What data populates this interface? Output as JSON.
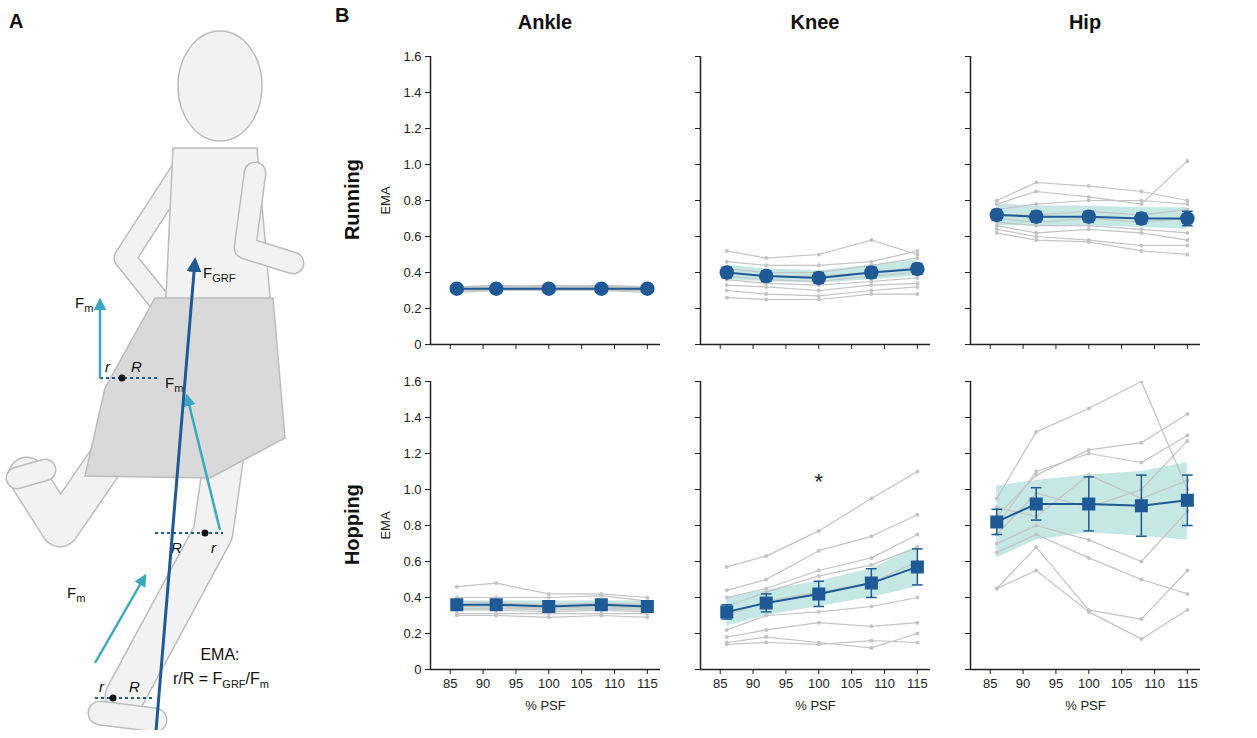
{
  "panel_labels": [
    "A",
    "B"
  ],
  "panel_a": {
    "force_grf": [
      "F",
      "GRF"
    ],
    "muscle_force": [
      "F",
      "m"
    ],
    "lever_short": "r",
    "lever_long": "R",
    "ema_title": "EMA:",
    "ema_formula": [
      {
        "text": "r/R = F"
      },
      {
        "text": "GRF",
        "sub": true
      },
      {
        "text": "/F"
      },
      {
        "text": "m",
        "sub": true
      }
    ]
  },
  "column_titles": [
    "Ankle",
    "Knee",
    "Hip"
  ],
  "row_titles": [
    "Running",
    "Hopping"
  ],
  "chart_data": [
    {
      "type": "line",
      "row": "Running",
      "column": "Ankle",
      "ylabel": "EMA",
      "tick_labels": "y",
      "x": [
        86,
        92,
        100,
        108,
        115
      ],
      "xlim": [
        82,
        117
      ],
      "xticks": [
        85,
        90,
        95,
        100,
        105,
        110,
        115
      ],
      "ylim": [
        0,
        1.6
      ],
      "yticks": [
        0,
        0.2,
        0.4,
        0.6,
        0.8,
        {
          "value": 1,
          "label": "1.0"
        },
        1.2,
        1.4,
        1.6
      ],
      "series": [
        {
          "values": [
            0.31,
            0.31,
            0.31,
            0.31,
            0.31
          ],
          "error": [
            0.01,
            0.01,
            0.01,
            0.01,
            0.01
          ],
          "color": "#1f5a96",
          "marker": "circle"
        }
      ],
      "band": {
        "low": [
          0.3,
          0.3,
          0.3,
          0.3,
          0.3
        ],
        "high": [
          0.32,
          0.32,
          0.32,
          0.32,
          0.32
        ],
        "color": "#9fd9d3"
      },
      "individual": {
        "color": "#c4c4c4",
        "values": [
          [
            0.3,
            0.31,
            0.31,
            0.31,
            0.3
          ],
          [
            0.31,
            0.32,
            0.32,
            0.32,
            0.31
          ],
          [
            0.29,
            0.3,
            0.3,
            0.3,
            0.29
          ],
          [
            0.32,
            0.32,
            0.33,
            0.32,
            0.32
          ],
          [
            0.3,
            0.31,
            0.3,
            0.31,
            0.31
          ],
          [
            0.31,
            0.31,
            0.31,
            0.32,
            0.31
          ],
          [
            0.3,
            0.3,
            0.31,
            0.3,
            0.3
          ],
          [
            0.32,
            0.33,
            0.32,
            0.33,
            0.32
          ],
          [
            0.31,
            0.31,
            0.32,
            0.31,
            0.31
          ]
        ]
      }
    },
    {
      "type": "line",
      "row": "Running",
      "column": "Knee",
      "tick_labels": false,
      "x": [
        86,
        92,
        100,
        108,
        115
      ],
      "xlim": [
        82,
        117
      ],
      "xticks": [
        85,
        90,
        95,
        100,
        105,
        110,
        115
      ],
      "ylim": [
        0,
        1.6
      ],
      "yticks": [
        0,
        0.2,
        0.4,
        0.6,
        0.8,
        {
          "value": 1,
          "label": "1.0"
        },
        1.2,
        1.4,
        1.6
      ],
      "series": [
        {
          "values": [
            0.4,
            0.38,
            0.37,
            0.4,
            0.42
          ],
          "error": [
            0.03,
            0.03,
            0.03,
            0.03,
            0.03
          ],
          "color": "#1f5a96",
          "marker": "circle"
        }
      ],
      "band": {
        "low": [
          0.36,
          0.35,
          0.34,
          0.36,
          0.38
        ],
        "high": [
          0.44,
          0.42,
          0.41,
          0.44,
          0.47
        ],
        "color": "#9fd9d3"
      },
      "individual": {
        "color": "#c4c4c4",
        "values": [
          [
            0.52,
            0.48,
            0.5,
            0.58,
            0.5
          ],
          [
            0.46,
            0.44,
            0.44,
            0.46,
            0.52
          ],
          [
            0.42,
            0.4,
            0.4,
            0.44,
            0.48
          ],
          [
            0.4,
            0.38,
            0.38,
            0.4,
            0.43
          ],
          [
            0.38,
            0.36,
            0.35,
            0.38,
            0.4
          ],
          [
            0.36,
            0.34,
            0.33,
            0.35,
            0.37
          ],
          [
            0.33,
            0.32,
            0.3,
            0.33,
            0.34
          ],
          [
            0.3,
            0.28,
            0.27,
            0.3,
            0.32
          ],
          [
            0.26,
            0.25,
            0.25,
            0.28,
            0.28
          ]
        ]
      }
    },
    {
      "type": "line",
      "row": "Running",
      "column": "Hip",
      "tick_labels": false,
      "x": [
        86,
        92,
        100,
        108,
        115
      ],
      "xlim": [
        82,
        117
      ],
      "xticks": [
        85,
        90,
        95,
        100,
        105,
        110,
        115
      ],
      "ylim": [
        0,
        1.6
      ],
      "yticks": [
        0,
        0.2,
        0.4,
        0.6,
        0.8,
        {
          "value": 1,
          "label": "1.0"
        },
        1.2,
        1.4,
        1.6
      ],
      "series": [
        {
          "values": [
            0.72,
            0.71,
            0.71,
            0.7,
            0.7
          ],
          "error": [
            0.03,
            0.03,
            0.03,
            0.03,
            0.04
          ],
          "color": "#1f5a96",
          "marker": "circle"
        }
      ],
      "band": {
        "low": [
          0.66,
          0.66,
          0.66,
          0.65,
          0.64
        ],
        "high": [
          0.78,
          0.77,
          0.77,
          0.76,
          0.76
        ],
        "color": "#9fd9d3"
      },
      "individual": {
        "color": "#c4c4c4",
        "values": [
          [
            0.8,
            0.9,
            0.88,
            0.85,
            0.8
          ],
          [
            0.78,
            0.85,
            0.82,
            0.78,
            1.02
          ],
          [
            0.75,
            0.78,
            0.8,
            0.8,
            0.78
          ],
          [
            0.72,
            0.72,
            0.74,
            0.72,
            0.75
          ],
          [
            0.7,
            0.68,
            0.7,
            0.68,
            0.7
          ],
          [
            0.68,
            0.66,
            0.66,
            0.64,
            0.62
          ],
          [
            0.66,
            0.62,
            0.64,
            0.62,
            0.58
          ],
          [
            0.64,
            0.6,
            0.58,
            0.55,
            0.55
          ],
          [
            0.62,
            0.58,
            0.57,
            0.52,
            0.5
          ]
        ]
      }
    },
    {
      "type": "line",
      "row": "Hopping",
      "column": "Ankle",
      "ylabel": "EMA",
      "xlabel": "% PSF",
      "tick_labels": true,
      "x": [
        86,
        92,
        100,
        108,
        115
      ],
      "xlim": [
        82,
        117
      ],
      "xticks": [
        85,
        90,
        95,
        100,
        105,
        110,
        115
      ],
      "ylim": [
        0,
        1.6
      ],
      "yticks": [
        0,
        0.2,
        0.4,
        0.6,
        0.8,
        {
          "value": 1,
          "label": "1.0"
        },
        1.2,
        1.4,
        1.6
      ],
      "series": [
        {
          "values": [
            0.36,
            0.36,
            0.35,
            0.36,
            0.35
          ],
          "error": [
            0.02,
            0.02,
            0.02,
            0.02,
            0.02
          ],
          "color": "#1f5a96",
          "marker": "square"
        }
      ],
      "band": {
        "low": [
          0.33,
          0.33,
          0.33,
          0.33,
          0.33
        ],
        "high": [
          0.38,
          0.38,
          0.38,
          0.38,
          0.38
        ],
        "color": "#9fd9d3"
      },
      "individual": {
        "color": "#c4c4c4",
        "values": [
          [
            0.46,
            0.48,
            0.42,
            0.42,
            0.4
          ],
          [
            0.4,
            0.4,
            0.4,
            0.41,
            0.38
          ],
          [
            0.38,
            0.37,
            0.36,
            0.37,
            0.36
          ],
          [
            0.36,
            0.36,
            0.35,
            0.36,
            0.35
          ],
          [
            0.35,
            0.35,
            0.34,
            0.35,
            0.34
          ],
          [
            0.34,
            0.34,
            0.33,
            0.34,
            0.33
          ],
          [
            0.33,
            0.33,
            0.32,
            0.33,
            0.32
          ],
          [
            0.31,
            0.31,
            0.31,
            0.31,
            0.31
          ],
          [
            0.3,
            0.3,
            0.29,
            0.3,
            0.29
          ]
        ]
      }
    },
    {
      "type": "line",
      "row": "Hopping",
      "column": "Knee",
      "xlabel": "% PSF",
      "tick_labels": "x",
      "x": [
        86,
        92,
        100,
        108,
        115
      ],
      "xlim": [
        82,
        117
      ],
      "xticks": [
        85,
        90,
        95,
        100,
        105,
        110,
        115
      ],
      "ylim": [
        0,
        1.6
      ],
      "yticks": [
        0,
        0.2,
        0.4,
        0.6,
        0.8,
        {
          "value": 1,
          "label": "1.0"
        },
        1.2,
        1.4,
        1.6
      ],
      "series": [
        {
          "values": [
            0.32,
            0.37,
            0.42,
            0.48,
            0.57
          ],
          "error": [
            0.04,
            0.05,
            0.07,
            0.08,
            0.1
          ],
          "color": "#1f5a96",
          "marker": "square"
        }
      ],
      "band": {
        "low": [
          0.24,
          0.3,
          0.35,
          0.4,
          0.46
        ],
        "high": [
          0.4,
          0.44,
          0.49,
          0.56,
          0.68
        ],
        "color": "#9fd9d3"
      },
      "individual": {
        "color": "#c4c4c4",
        "values": [
          [
            0.57,
            0.63,
            0.77,
            0.95,
            1.1
          ],
          [
            0.44,
            0.5,
            0.66,
            0.74,
            0.86
          ],
          [
            0.4,
            0.45,
            0.55,
            0.62,
            0.75
          ],
          [
            0.35,
            0.43,
            0.52,
            0.58,
            0.68
          ],
          [
            0.3,
            0.38,
            0.43,
            0.48,
            0.6
          ],
          [
            0.22,
            0.3,
            0.32,
            0.35,
            0.4
          ],
          [
            0.18,
            0.22,
            0.26,
            0.24,
            0.26
          ],
          [
            0.15,
            0.18,
            0.15,
            0.12,
            0.2
          ],
          [
            0.14,
            0.15,
            0.14,
            0.16,
            0.15
          ]
        ]
      },
      "annotations": [
        {
          "text": "*",
          "x": 100,
          "y": 1.04
        }
      ]
    },
    {
      "type": "line",
      "row": "Hopping",
      "column": "Hip",
      "xlabel": "% PSF",
      "tick_labels": "x",
      "x": [
        86,
        92,
        100,
        108,
        115
      ],
      "xlim": [
        82,
        117
      ],
      "xticks": [
        85,
        90,
        95,
        100,
        105,
        110,
        115
      ],
      "ylim": [
        0,
        1.6
      ],
      "yticks": [
        0,
        0.2,
        0.4,
        0.6,
        0.8,
        {
          "value": 1,
          "label": "1.0"
        },
        1.2,
        1.4,
        1.6
      ],
      "series": [
        {
          "values": [
            0.82,
            0.92,
            0.92,
            0.91,
            0.94
          ],
          "error": [
            0.07,
            0.09,
            0.15,
            0.17,
            0.14
          ],
          "color": "#1f5a96",
          "marker": "square"
        }
      ],
      "band": {
        "low": [
          0.62,
          0.72,
          0.76,
          0.74,
          0.72
        ],
        "high": [
          1.02,
          1.05,
          1.08,
          1.1,
          1.15
        ],
        "color": "#9fd9d3"
      },
      "individual": {
        "color": "#c4c4c4",
        "values": [
          [
            0.95,
            1.32,
            1.45,
            1.6,
            1.0
          ],
          [
            0.85,
            1.08,
            1.22,
            1.26,
            1.42
          ],
          [
            0.8,
            1.1,
            1.2,
            1.15,
            1.3
          ],
          [
            0.9,
            0.85,
            1.08,
            0.95,
            1.05
          ],
          [
            0.75,
            0.98,
            0.9,
            1.0,
            1.27
          ],
          [
            0.7,
            0.8,
            0.72,
            0.6,
            0.88
          ],
          [
            0.65,
            0.75,
            0.62,
            0.5,
            0.42
          ],
          [
            0.45,
            0.68,
            0.33,
            0.28,
            0.55
          ],
          [
            0.45,
            0.55,
            0.32,
            0.17,
            0.33
          ]
        ]
      }
    }
  ]
}
